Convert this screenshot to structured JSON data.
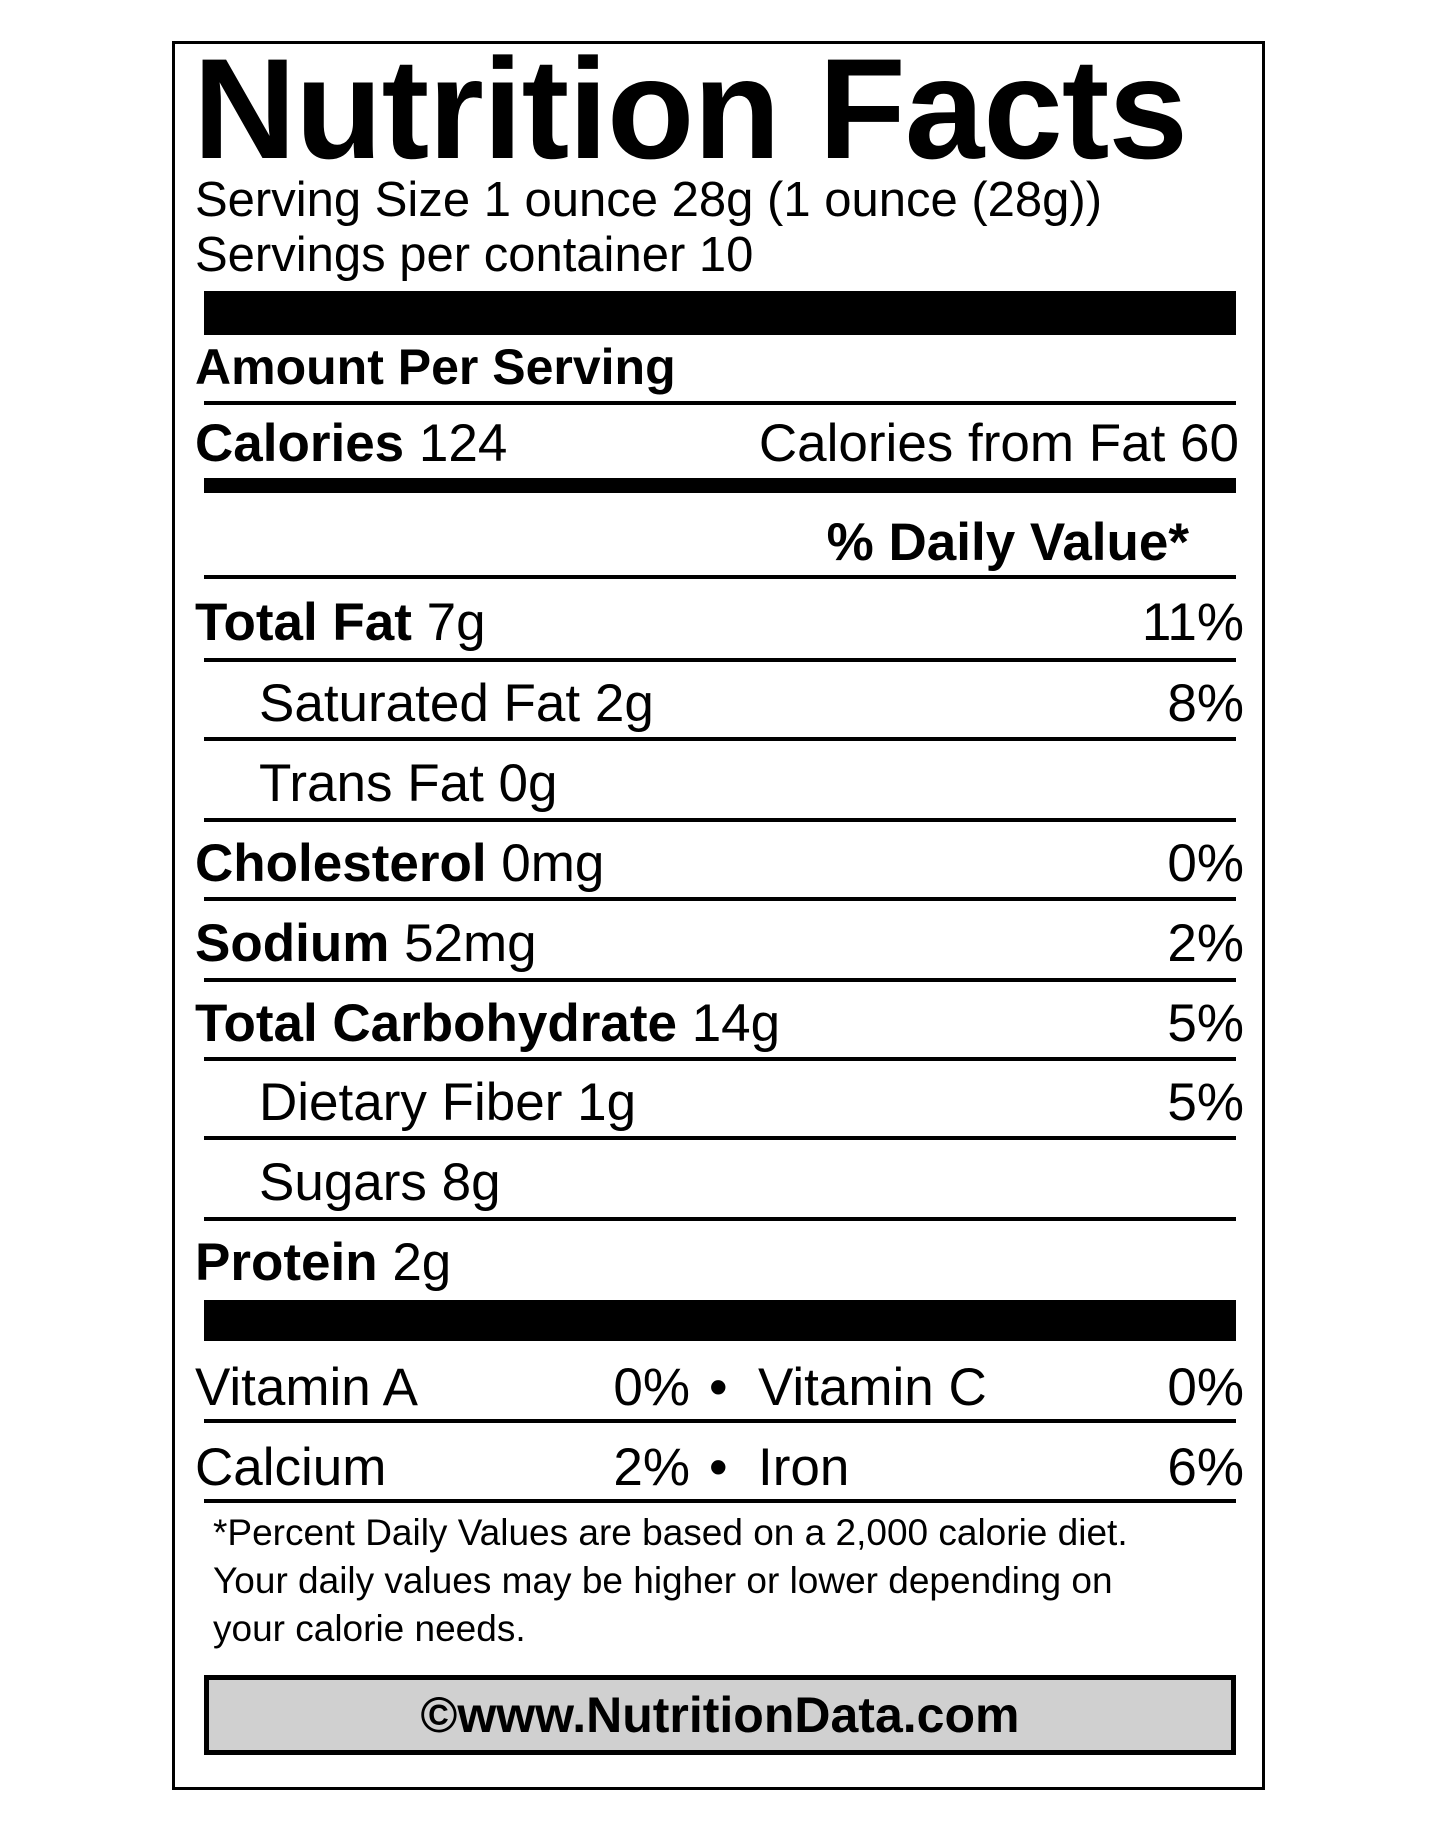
{
  "title": "Nutrition Facts",
  "serving_size": "Serving Size 1 ounce 28g (1 ounce (28g))",
  "servings_per_container": "Servings per container 10",
  "amount_per_serving": "Amount Per Serving",
  "calories": {
    "label": "Calories",
    "value": "124",
    "from_fat": "Calories from Fat 60"
  },
  "daily_value_header": "% Daily Value*",
  "nutrients": [
    {
      "label": "Total Fat",
      "amount": "7g",
      "dv": "11%",
      "bold": true
    },
    {
      "label": "Saturated Fat",
      "amount": "2g",
      "dv": "8%",
      "bold": false
    },
    {
      "label": "Trans Fat",
      "amount": "0g",
      "dv": "",
      "bold": false
    },
    {
      "label": "Cholesterol",
      "amount": "0mg",
      "dv": "0%",
      "bold": true
    },
    {
      "label": "Sodium",
      "amount": "52mg",
      "dv": "2%",
      "bold": true
    },
    {
      "label": "Total Carbohydrate",
      "amount": "14g",
      "dv": "5%",
      "bold": true
    },
    {
      "label": "Dietary Fiber",
      "amount": "1g",
      "dv": "5%",
      "bold": false
    },
    {
      "label": "Sugars",
      "amount": "8g",
      "dv": "",
      "bold": false
    },
    {
      "label": "Protein",
      "amount": "2g",
      "dv": "",
      "bold": true
    }
  ],
  "vitamins": [
    {
      "left_label": "Vitamin A",
      "left_value": "0%",
      "right_label": "Vitamin C",
      "right_value": "0%"
    },
    {
      "left_label": "Calcium",
      "left_value": "2%",
      "right_label": "Iron",
      "right_value": "6%"
    }
  ],
  "bullet": "•",
  "footnote": [
    "*Percent Daily Values are based on a 2,000 calorie diet.",
    "Your daily values may be higher or lower depending on",
    "your calorie needs."
  ],
  "copyright": "©www.NutritionData.com"
}
